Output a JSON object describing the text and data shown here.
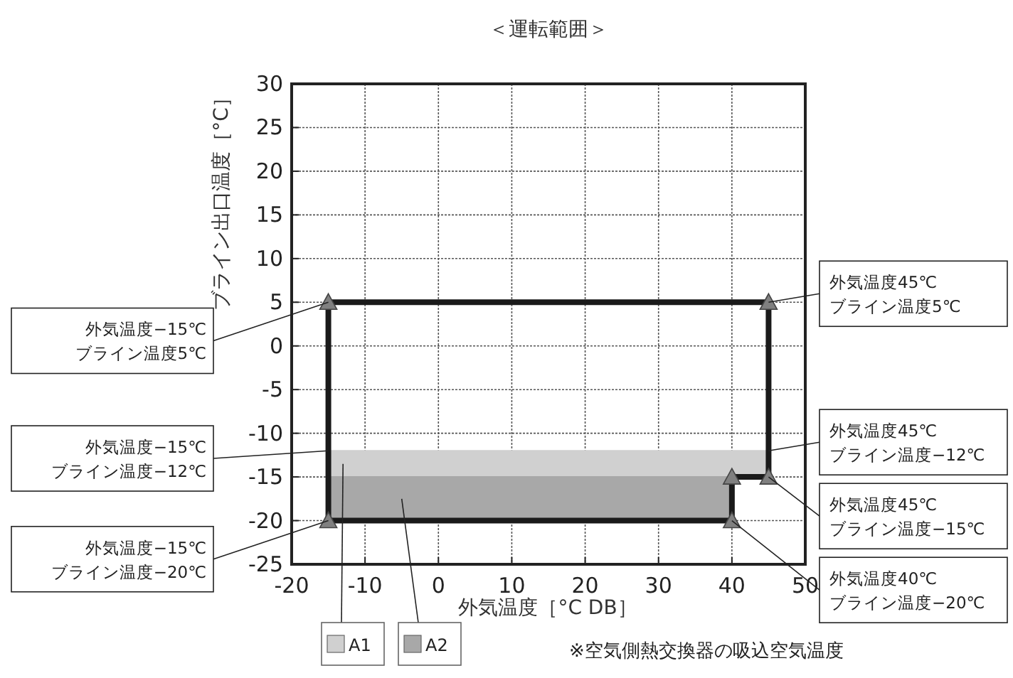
{
  "chart_data": {
    "type": "line",
    "title": "＜運転範囲＞",
    "xlabel": "外気温度［°C DB］",
    "ylabel": "ブライン出口温度［°C］",
    "xlim": [
      -20,
      50
    ],
    "xticks": [
      -20,
      -10,
      0,
      10,
      20,
      30,
      40,
      50
    ],
    "ylim": [
      -25,
      30
    ],
    "yticks": [
      -25,
      -20,
      -15,
      -10,
      -5,
      0,
      5,
      10,
      15,
      20,
      25,
      30
    ],
    "grid": true,
    "legend": "bottom left",
    "series": [
      {
        "name": "A1",
        "color": "#d0d0d0",
        "x": [
          -15,
          45
        ],
        "values": [
          -12,
          -12
        ],
        "lower": [
          -15,
          -15
        ],
        "upper": [
          -12,
          -12
        ]
      },
      {
        "name": "A2",
        "color": "#a8a8a8",
        "x": [
          -15,
          40
        ],
        "values": [
          -15,
          -15
        ],
        "lower": [
          -20,
          -20
        ],
        "upper": [
          -15,
          -15
        ]
      },
      {
        "color": "#1a1a1a",
        "x": [
          -15,
          45
        ],
        "values": [
          5,
          5
        ]
      },
      {
        "color": "#1a1a1a",
        "x": [
          -15,
          40,
          40,
          45
        ],
        "values": [
          -20,
          -20,
          -15,
          -15
        ]
      },
      {
        "color": "#1a1a1a",
        "x": [
          -15,
          -15
        ],
        "values": [
          -20,
          5
        ]
      },
      {
        "color": "#1a1a1a",
        "x": [
          45,
          45
        ],
        "values": [
          -15,
          5
        ]
      },
      {
        "type": "scatter",
        "color": "#808080",
        "marker": "triangle",
        "x": [
          -15,
          45,
          45,
          40,
          40,
          -15
        ],
        "values": [
          5,
          5,
          -15,
          -15,
          -20,
          -20
        ]
      }
    ],
    "annotations": [
      {
        "text": "外気温度−15℃\nブライン温度5℃",
        "x": -15,
        "y": 5
      },
      {
        "text": "外気温度−15℃\nブライン温度−12℃",
        "x": -15,
        "y": -12
      },
      {
        "text": "外気温度−15℃\nブライン温度−20℃",
        "x": -15,
        "y": -20
      },
      {
        "text": "外気温度45℃\nブライン温度5℃",
        "x": 45,
        "y": 5
      },
      {
        "text": "外気温度45℃\nブライン温度−12℃",
        "x": 45,
        "y": -12
      },
      {
        "text": "外気温度45℃\nブライン温度−15℃",
        "x": 45,
        "y": -15
      },
      {
        "text": "外気温度40℃\nブライン温度−20℃",
        "x": 40,
        "y": -20
      },
      "※空気側熱交換器の吸込空気温度"
    ]
  }
}
